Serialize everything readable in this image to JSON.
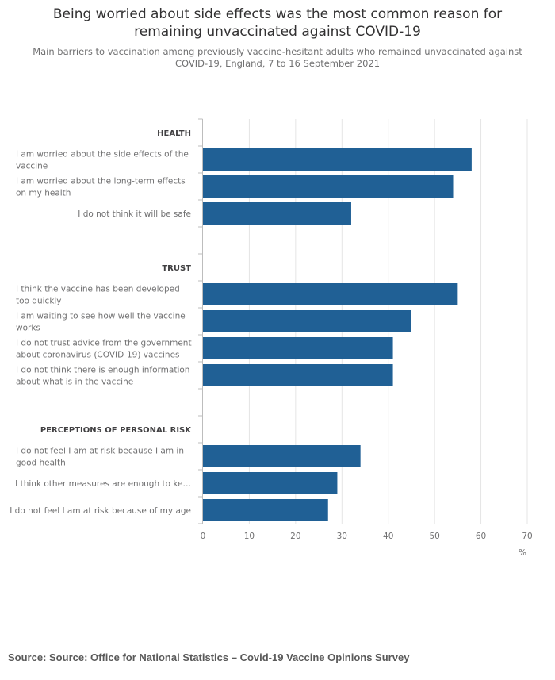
{
  "header": {
    "title_line1": "Being worried about side effects was the most common reason for",
    "title_line2": "remaining unvaccinated against COVID-19",
    "subtitle": "Main barriers to vaccination among previously vaccine-hesitant adults who remained unvaccinated against COVID-19, England, 7 to 16 September 2021"
  },
  "footer": {
    "source": "Source: Source: Office for National Statistics – Covid-19 Vaccine Opinions Survey"
  },
  "colors": {
    "bar": "#206095",
    "grid": "#e5e5e5",
    "axis": "#bdbdbd",
    "text": "#707071",
    "heading": "#414042"
  },
  "chart_data": {
    "type": "bar",
    "orientation": "horizontal",
    "title": "Being worried about side effects was the most common reason for remaining unvaccinated against COVID-19",
    "subtitle": "Main barriers to vaccination among previously vaccine-hesitant adults who remained unvaccinated against COVID-19, England, 7 to 16 September 2021",
    "xlabel": "%",
    "ylabel": "",
    "xlim": [
      0,
      70
    ],
    "xticks": [
      0,
      10,
      20,
      30,
      40,
      50,
      60,
      70
    ],
    "grid": true,
    "categories": [
      {
        "label": "HEALTH",
        "heading": true
      },
      {
        "label": "I am worried about the side effects of the vaccine",
        "lines": [
          "I am worried about the side effects of the",
          "vaccine"
        ],
        "value": 58
      },
      {
        "label": "I am worried about the long-term effects on my health",
        "lines": [
          "I am worried about the long-term effects",
          "on my health"
        ],
        "value": 54
      },
      {
        "label": "I do not think it will be safe",
        "lines": [
          "I do not think it will be safe"
        ],
        "value": 32
      },
      {
        "label": "",
        "spacer": true
      },
      {
        "label": "TRUST",
        "heading": true
      },
      {
        "label": "I think the vaccine has been developed too quickly",
        "lines": [
          "I think the vaccine has been developed",
          "too quickly"
        ],
        "value": 55
      },
      {
        "label": "I am waiting to see how well the vaccine works",
        "lines": [
          "I am waiting to see how well the vaccine",
          "works"
        ],
        "value": 45
      },
      {
        "label": "I do not trust advice from the government about coronavirus (COVID-19) vaccines",
        "lines": [
          "I do not trust advice from the government",
          "about coronavirus (COVID-19) vaccines"
        ],
        "value": 41
      },
      {
        "label": "I do not think there is enough information about what is in the vaccine",
        "lines": [
          "I do not think there is enough information",
          "about what is in the vaccine"
        ],
        "value": 41
      },
      {
        "label": "",
        "spacer": true
      },
      {
        "label": "PERCEPTIONS OF PERSONAL RISK",
        "heading": true
      },
      {
        "label": "I do not feel I am at risk because I am in good health",
        "lines": [
          "I do not feel I am at risk because I am in",
          "good health"
        ],
        "value": 34
      },
      {
        "label": "I think other measures are enough to ke…",
        "lines": [
          "I think other measures are enough to ke…"
        ],
        "value": 29
      },
      {
        "label": "I do not feel I am at risk because of my age",
        "lines": [
          "I do not feel I am at risk because of my age"
        ],
        "value": 27
      }
    ]
  }
}
